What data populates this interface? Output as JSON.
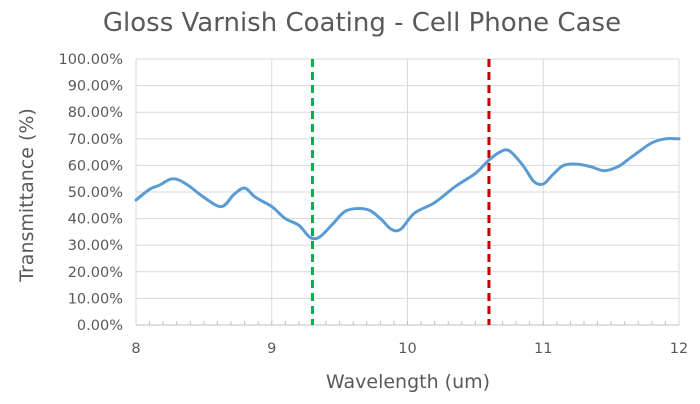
{
  "chart_data": {
    "type": "line",
    "title": "Gloss Varnish Coating - Cell Phone Case",
    "xlabel": "Wavelength (um)",
    "ylabel": "Transmittance (%)",
    "xlim": [
      8,
      12
    ],
    "ylim": [
      0,
      100
    ],
    "x_ticks": [
      8,
      9,
      10,
      11,
      12
    ],
    "x_tick_labels": [
      "8",
      "9",
      "10",
      "11",
      "12"
    ],
    "y_ticks": [
      0,
      10,
      20,
      30,
      40,
      50,
      60,
      70,
      80,
      90,
      100
    ],
    "y_tick_labels": [
      "0.00%",
      "10.00%",
      "20.00%",
      "30.00%",
      "40.00%",
      "50.00%",
      "60.00%",
      "70.00%",
      "80.00%",
      "90.00%",
      "100.00%"
    ],
    "grid": true,
    "series": [
      {
        "color": "#5b9bd5",
        "x": [
          8.0,
          8.1,
          8.17,
          8.27,
          8.37,
          8.5,
          8.63,
          8.72,
          8.8,
          8.88,
          9.0,
          9.1,
          9.2,
          9.28,
          9.35,
          9.45,
          9.55,
          9.7,
          9.8,
          9.88,
          9.95,
          10.05,
          10.2,
          10.35,
          10.5,
          10.6,
          10.68,
          10.75,
          10.85,
          10.93,
          11.0,
          11.07,
          11.15,
          11.25,
          11.35,
          11.45,
          11.55,
          11.62,
          11.7,
          11.8,
          11.9,
          12.0
        ],
        "y": [
          47,
          51,
          52.5,
          55,
          53,
          48,
          44.5,
          49,
          51.5,
          48,
          44.5,
          40,
          37.5,
          33,
          33,
          38,
          43,
          43.5,
          40,
          36,
          36,
          42,
          46,
          52,
          57,
          62,
          65,
          65.5,
          60,
          54,
          53,
          56.5,
          60,
          60.5,
          59.5,
          58,
          59.5,
          62,
          65,
          68.5,
          70,
          70
        ]
      }
    ],
    "reference_lines": [
      {
        "x": 9.3,
        "color": "#00b050",
        "style": "dashed"
      },
      {
        "x": 10.6,
        "color": "#c00000",
        "style": "dashed"
      }
    ]
  }
}
